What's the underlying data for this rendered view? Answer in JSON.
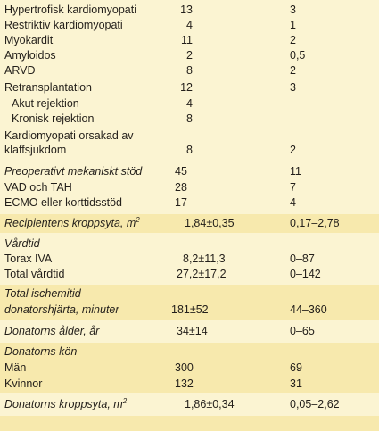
{
  "rows": [
    {
      "label": "Hypertrofisk kardiomyopati",
      "v1": "13",
      "v2": "3"
    },
    {
      "label": "Restriktiv kardiomyopati",
      "v1": "4",
      "v2": "1"
    },
    {
      "label": "Myokardit",
      "v1": "11",
      "v2": "2"
    },
    {
      "label": "Amyloidos",
      "v1": "2",
      "v2": "0,5"
    },
    {
      "label": "ARVD",
      "v1": "8",
      "v2": "2"
    },
    {
      "label": "Retransplantation",
      "v1": "12",
      "v2": "3"
    },
    {
      "label": "Akut rejektion",
      "v1": "4",
      "v2": ""
    },
    {
      "label": "Kronisk rejektion",
      "v1": "8",
      "v2": ""
    },
    {
      "label": "Kardiomyopati orsakad av",
      "label2": "klaffsjukdom",
      "v1": "8",
      "v2": "2"
    },
    {
      "label": "Preoperativt mekaniskt stöd",
      "v1": "45",
      "v2": "11"
    },
    {
      "label": "VAD och TAH",
      "v1": "28",
      "v2": "7"
    },
    {
      "label": "ECMO eller korttidsstöd",
      "v1": "17",
      "v2": "4"
    },
    {
      "label": "Recipientens kroppsyta, m",
      "sup": "2",
      "v1": "1,84±0,35",
      "v2": "0,17–2,78"
    },
    {
      "label": "Vårdtid"
    },
    {
      "label": "Torax IVA",
      "v1": "8,2±11,3",
      "v2": "0–87"
    },
    {
      "label": "Total vårdtid",
      "v1": "27,2±17,2",
      "v2": "0–142"
    },
    {
      "label": "Total ischemitid",
      "label2": "donatorshjärta, minuter",
      "v1": "181±52",
      "v2": "44–360"
    },
    {
      "label": "Donatorns ålder, år",
      "v1": "34±14",
      "v2": "0–65"
    },
    {
      "label": "Donatorns kön"
    },
    {
      "label": "Män",
      "v1": "300",
      "v2": "69"
    },
    {
      "label": "Kvinnor",
      "v1": "132",
      "v2": "31"
    },
    {
      "label": "Donatorns kroppsyta, m",
      "sup": "2",
      "v1": "1,86±0,34",
      "v2": "0,05–2,62"
    }
  ]
}
